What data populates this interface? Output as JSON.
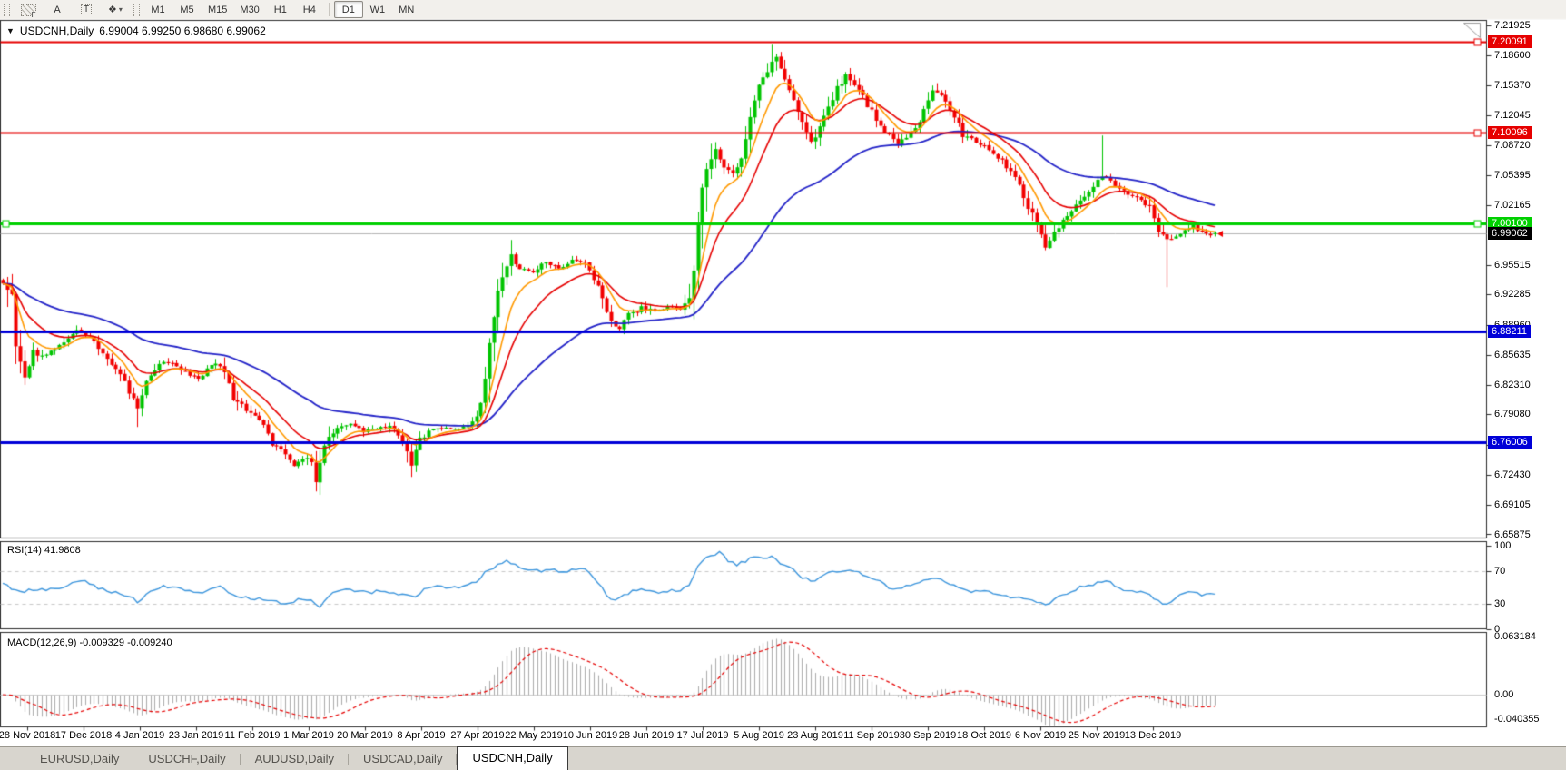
{
  "accent_colors": {
    "bull": "#00c400",
    "bear": "#f20000",
    "resistance_red": "#e60000",
    "support_blue": "#0000d8",
    "pivot_green": "#00d000",
    "current_price_line": "#b4b4b4",
    "rsi_line": "#3d96dd",
    "macd_histogram": "#ababab",
    "macd_signal": "#e60000",
    "ma_fast": "#ff9900",
    "ma_mid": "#e60000",
    "ma_slow": "#2323c8"
  },
  "toolbar": {
    "tools": [
      {
        "id": "fibonacci",
        "glyph": "F"
      },
      {
        "id": "text",
        "glyph": "A"
      },
      {
        "id": "text-label",
        "glyph": "T"
      },
      {
        "id": "shapes",
        "glyph": "❖"
      }
    ],
    "timeframes": [
      {
        "label": "M1",
        "active": false
      },
      {
        "label": "M5",
        "active": false
      },
      {
        "label": "M15",
        "active": false
      },
      {
        "label": "M30",
        "active": false
      },
      {
        "label": "H1",
        "active": false
      },
      {
        "label": "H4",
        "active": false
      },
      {
        "label": "D1",
        "active": true
      },
      {
        "label": "W1",
        "active": false
      },
      {
        "label": "MN",
        "active": false
      }
    ]
  },
  "chart": {
    "dropdown_caret": "▼",
    "symbol_period": "USDCNH,Daily",
    "ohlc_text": "6.99004 6.99250 6.98680 6.99062",
    "open": "6.99004",
    "high": "6.99250",
    "low": "6.98680",
    "close": "6.99062"
  },
  "price_axis": {
    "ticks": [
      "7.21925",
      "7.18600",
      "7.15370",
      "7.12045",
      "7.08720",
      "7.05395",
      "7.02165",
      "6.95515",
      "6.92285",
      "6.88960",
      "6.85635",
      "6.82310",
      "6.79080",
      "6.75755",
      "6.72430",
      "6.69105",
      "6.65875"
    ]
  },
  "hlines": [
    {
      "value": 7.20091,
      "label": "7.20091",
      "color": "#e60000",
      "width": 2,
      "handles": [
        "right"
      ]
    },
    {
      "value": 7.10096,
      "label": "7.10096",
      "color": "#e60000",
      "width": 2,
      "handles": [
        "right"
      ]
    },
    {
      "value": 7.001,
      "label": "7.00100",
      "color": "#00d000",
      "width": 3,
      "handles": [
        "left",
        "right"
      ]
    },
    {
      "value": 6.88211,
      "label": "6.88211",
      "color": "#0000d8",
      "width": 3,
      "handles": []
    },
    {
      "value": 6.76006,
      "label": "6.76006",
      "color": "#0000d8",
      "width": 3,
      "handles": []
    }
  ],
  "current_price": {
    "value": 6.99062,
    "label": "6.99062",
    "badge_bg": "#000000",
    "badge_fg": "#ffffff"
  },
  "rsi": {
    "label": "RSI(14) 41.9808",
    "current": 41.9808,
    "axis_labels": [
      "100",
      "70",
      "30",
      "0"
    ],
    "level_lines": [
      70,
      30
    ]
  },
  "macd": {
    "label": "MACD(12,26,9) -0.009329 -0.009240",
    "macd_current": -0.009329,
    "signal_current": -0.00924,
    "axis_labels": [
      "0.063184",
      "0.00",
      "-0.040355"
    ]
  },
  "date_axis": {
    "labels": [
      "28 Nov 2018",
      "17 Dec 2018",
      "4 Jan 2019",
      "23 Jan 2019",
      "11 Feb 2019",
      "1 Mar 2019",
      "20 Mar 2019",
      "8 Apr 2019",
      "27 Apr 2019",
      "22 May 2019",
      "10 Jun 2019",
      "28 Jun 2019",
      "17 Jul 2019",
      "5 Aug 2019",
      "23 Aug 2019",
      "11 Sep 2019",
      "30 Sep 2019",
      "18 Oct 2019",
      "6 Nov 2019",
      "25 Nov 2019",
      "13 Dec 2019"
    ]
  },
  "tabs": {
    "items": [
      {
        "label": "EURUSD,Daily",
        "active": false
      },
      {
        "label": "USDCHF,Daily",
        "active": false
      },
      {
        "label": "AUDUSD,Daily",
        "active": false
      },
      {
        "label": "USDCAD,Daily",
        "active": false
      },
      {
        "label": "USDCNH,Daily",
        "active": true
      }
    ]
  },
  "chart_data": {
    "type": "candlestick",
    "symbol": "USDCNH",
    "timeframe": "Daily",
    "bars": 280,
    "price_range": [
      6.655,
      7.225
    ],
    "last_bar": {
      "open": 6.99004,
      "high": 6.9925,
      "low": 6.9868,
      "close": 6.99062
    },
    "close_anchors": [
      [
        0,
        6.935
      ],
      [
        2,
        6.925
      ],
      [
        3,
        6.87
      ],
      [
        5,
        6.835
      ],
      [
        7,
        6.86
      ],
      [
        9,
        6.855
      ],
      [
        12,
        6.862
      ],
      [
        15,
        6.875
      ],
      [
        17,
        6.885
      ],
      [
        20,
        6.875
      ],
      [
        23,
        6.86
      ],
      [
        26,
        6.84
      ],
      [
        29,
        6.815
      ],
      [
        31,
        6.8
      ],
      [
        33,
        6.825
      ],
      [
        36,
        6.85
      ],
      [
        39,
        6.846
      ],
      [
        42,
        6.838
      ],
      [
        45,
        6.83
      ],
      [
        48,
        6.848
      ],
      [
        50,
        6.845
      ],
      [
        53,
        6.81
      ],
      [
        56,
        6.795
      ],
      [
        59,
        6.785
      ],
      [
        62,
        6.76
      ],
      [
        65,
        6.745
      ],
      [
        67,
        6.732
      ],
      [
        69,
        6.744
      ],
      [
        71,
        6.74
      ],
      [
        72,
        6.72
      ],
      [
        74,
        6.758
      ],
      [
        77,
        6.776
      ],
      [
        80,
        6.78
      ],
      [
        83,
        6.772
      ],
      [
        86,
        6.776
      ],
      [
        89,
        6.778
      ],
      [
        92,
        6.762
      ],
      [
        94,
        6.738
      ],
      [
        96,
        6.762
      ],
      [
        99,
        6.775
      ],
      [
        102,
        6.776
      ],
      [
        105,
        6.774
      ],
      [
        108,
        6.782
      ],
      [
        110,
        6.8
      ],
      [
        111,
        6.83
      ],
      [
        112,
        6.87
      ],
      [
        113,
        6.9
      ],
      [
        114,
        6.925
      ],
      [
        115,
        6.945
      ],
      [
        116,
        6.955
      ],
      [
        117,
        6.965
      ],
      [
        119,
        6.952
      ],
      [
        122,
        6.948
      ],
      [
        125,
        6.958
      ],
      [
        128,
        6.952
      ],
      [
        131,
        6.962
      ],
      [
        134,
        6.958
      ],
      [
        136,
        6.942
      ],
      [
        138,
        6.92
      ],
      [
        140,
        6.895
      ],
      [
        142,
        6.885
      ],
      [
        144,
        6.9
      ],
      [
        147,
        6.908
      ],
      [
        150,
        6.905
      ],
      [
        153,
        6.91
      ],
      [
        156,
        6.905
      ],
      [
        158,
        6.92
      ],
      [
        159,
        6.95
      ],
      [
        160,
        7.0
      ],
      [
        161,
        7.04
      ],
      [
        162,
        7.065
      ],
      [
        164,
        7.08
      ],
      [
        166,
        7.065
      ],
      [
        168,
        7.055
      ],
      [
        170,
        7.075
      ],
      [
        172,
        7.12
      ],
      [
        174,
        7.15
      ],
      [
        176,
        7.17
      ],
      [
        178,
        7.183
      ],
      [
        180,
        7.16
      ],
      [
        182,
        7.135
      ],
      [
        184,
        7.11
      ],
      [
        186,
        7.088
      ],
      [
        188,
        7.105
      ],
      [
        190,
        7.13
      ],
      [
        192,
        7.15
      ],
      [
        194,
        7.163
      ],
      [
        196,
        7.155
      ],
      [
        198,
        7.14
      ],
      [
        200,
        7.125
      ],
      [
        203,
        7.103
      ],
      [
        206,
        7.09
      ],
      [
        209,
        7.1
      ],
      [
        212,
        7.125
      ],
      [
        214,
        7.148
      ],
      [
        216,
        7.14
      ],
      [
        218,
        7.125
      ],
      [
        221,
        7.1
      ],
      [
        224,
        7.09
      ],
      [
        227,
        7.083
      ],
      [
        230,
        7.07
      ],
      [
        233,
        7.05
      ],
      [
        236,
        7.02
      ],
      [
        238,
        7.0
      ],
      [
        240,
        6.978
      ],
      [
        242,
        6.99
      ],
      [
        245,
        7.01
      ],
      [
        248,
        7.028
      ],
      [
        251,
        7.04
      ],
      [
        253,
        7.055
      ],
      [
        255,
        7.048
      ],
      [
        258,
        7.036
      ],
      [
        261,
        7.028
      ],
      [
        264,
        7.02
      ],
      [
        266,
        6.995
      ],
      [
        268,
        6.982
      ],
      [
        270,
        6.988
      ],
      [
        272,
        6.995
      ],
      [
        274,
        6.998
      ],
      [
        276,
        6.992
      ],
      [
        278,
        6.988
      ],
      [
        279,
        6.99062
      ]
    ],
    "wick_spikes": [
      {
        "i": 31,
        "low": 6.777
      },
      {
        "i": 72,
        "low": 6.706
      },
      {
        "i": 94,
        "low": 6.722
      },
      {
        "i": 117,
        "high": 6.983
      },
      {
        "i": 177,
        "high": 7.198
      },
      {
        "i": 253,
        "high": 7.098
      },
      {
        "i": 268,
        "low": 6.931
      }
    ],
    "overlays": [
      {
        "name": "ma-fast",
        "period": 8,
        "color": "#ff9900"
      },
      {
        "name": "ma-mid",
        "period": 16,
        "color": "#e60000"
      },
      {
        "name": "ma-slow",
        "period": 50,
        "color": "#2323c8"
      }
    ],
    "rsi_anchors": [
      [
        0,
        55
      ],
      [
        4,
        44
      ],
      [
        7,
        48
      ],
      [
        10,
        46
      ],
      [
        13,
        50
      ],
      [
        16,
        54
      ],
      [
        19,
        58
      ],
      [
        22,
        50
      ],
      [
        26,
        44
      ],
      [
        29,
        40
      ],
      [
        31,
        33
      ],
      [
        34,
        44
      ],
      [
        37,
        51
      ],
      [
        40,
        49
      ],
      [
        43,
        46
      ],
      [
        46,
        44
      ],
      [
        50,
        52
      ],
      [
        53,
        42
      ],
      [
        56,
        38
      ],
      [
        59,
        36
      ],
      [
        62,
        33
      ],
      [
        65,
        31
      ],
      [
        68,
        35
      ],
      [
        70,
        36
      ],
      [
        73,
        28
      ],
      [
        76,
        43
      ],
      [
        79,
        48
      ],
      [
        82,
        46
      ],
      [
        85,
        44
      ],
      [
        88,
        47
      ],
      [
        91,
        42
      ],
      [
        95,
        37
      ],
      [
        97,
        49
      ],
      [
        100,
        52
      ],
      [
        103,
        50
      ],
      [
        106,
        52
      ],
      [
        109,
        56
      ],
      [
        111,
        68
      ],
      [
        114,
        78
      ],
      [
        116,
        83
      ],
      [
        118,
        77
      ],
      [
        121,
        72
      ],
      [
        124,
        70
      ],
      [
        126,
        73
      ],
      [
        129,
        69
      ],
      [
        132,
        73
      ],
      [
        135,
        69
      ],
      [
        137,
        57
      ],
      [
        140,
        34
      ],
      [
        142,
        38
      ],
      [
        145,
        45
      ],
      [
        148,
        47
      ],
      [
        151,
        45
      ],
      [
        154,
        47
      ],
      [
        156,
        46
      ],
      [
        158,
        52
      ],
      [
        160,
        75
      ],
      [
        162,
        88
      ],
      [
        165,
        92
      ],
      [
        167,
        82
      ],
      [
        169,
        76
      ],
      [
        171,
        82
      ],
      [
        173,
        87
      ],
      [
        175,
        86
      ],
      [
        177,
        88
      ],
      [
        179,
        80
      ],
      [
        182,
        70
      ],
      [
        184,
        62
      ],
      [
        187,
        58
      ],
      [
        189,
        65
      ],
      [
        192,
        70
      ],
      [
        194,
        72
      ],
      [
        197,
        68
      ],
      [
        199,
        62
      ],
      [
        202,
        56
      ],
      [
        205,
        48
      ],
      [
        208,
        52
      ],
      [
        211,
        56
      ],
      [
        214,
        62
      ],
      [
        217,
        56
      ],
      [
        220,
        50
      ],
      [
        223,
        46
      ],
      [
        226,
        45
      ],
      [
        229,
        43
      ],
      [
        232,
        39
      ],
      [
        235,
        36
      ],
      [
        238,
        32
      ],
      [
        240,
        29
      ],
      [
        243,
        38
      ],
      [
        246,
        45
      ],
      [
        248,
        50
      ],
      [
        251,
        54
      ],
      [
        254,
        58
      ],
      [
        256,
        52
      ],
      [
        258,
        48
      ],
      [
        261,
        46
      ],
      [
        264,
        42
      ],
      [
        266,
        33
      ],
      [
        268,
        31
      ],
      [
        271,
        40
      ],
      [
        273,
        44
      ],
      [
        276,
        41
      ],
      [
        279,
        42
      ]
    ]
  }
}
